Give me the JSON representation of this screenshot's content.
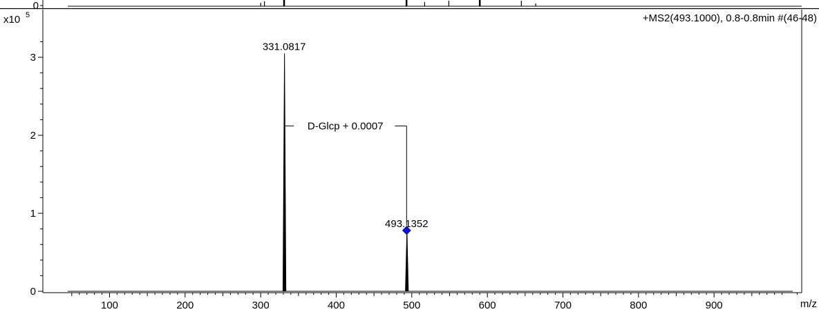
{
  "chart_data": {
    "type": "bar",
    "title": "+MS2(493.1000), 0.8-0.8min #(46-48)",
    "xlabel": "m/z",
    "ylabel": "",
    "y_multiplier_label": "x10",
    "y_multiplier_exponent": "5",
    "xlim": [
      43,
      1147
    ],
    "ylim": [
      0,
      3.4
    ],
    "x_ticks": [
      "100",
      "200",
      "300",
      "400",
      "500",
      "600",
      "700",
      "800",
      "900"
    ],
    "y_ticks": [
      "0",
      "1",
      "2",
      "3"
    ],
    "grid": false,
    "peaks": [
      {
        "x": 331.0817,
        "y": 3.05,
        "label": "331.0817"
      },
      {
        "x": 493.1352,
        "y": 0.78,
        "label": "493.1352"
      }
    ],
    "precursor": {
      "x": 493.1352,
      "y": 0.78,
      "marker": "diamond",
      "color": "#1010e0"
    },
    "annotation": {
      "text": "D-Glcp + 0.0007",
      "from_x": 331.0817,
      "to_x": 493.1352,
      "y": 2.12
    },
    "top_panel": {
      "y_tick": "0",
      "peaks": [
        {
          "x": 300,
          "h": 5
        },
        {
          "x": 305,
          "h": 7
        },
        {
          "x": 331,
          "h": 14
        },
        {
          "x": 493,
          "h": 14
        },
        {
          "x": 517,
          "h": 6
        },
        {
          "x": 549,
          "h": 8
        },
        {
          "x": 590,
          "h": 14
        },
        {
          "x": 645,
          "h": 8
        },
        {
          "x": 664,
          "h": 4
        }
      ]
    }
  },
  "colors": {
    "axis": "#000000",
    "peak": "#000000",
    "precursor": "#1010e0"
  }
}
